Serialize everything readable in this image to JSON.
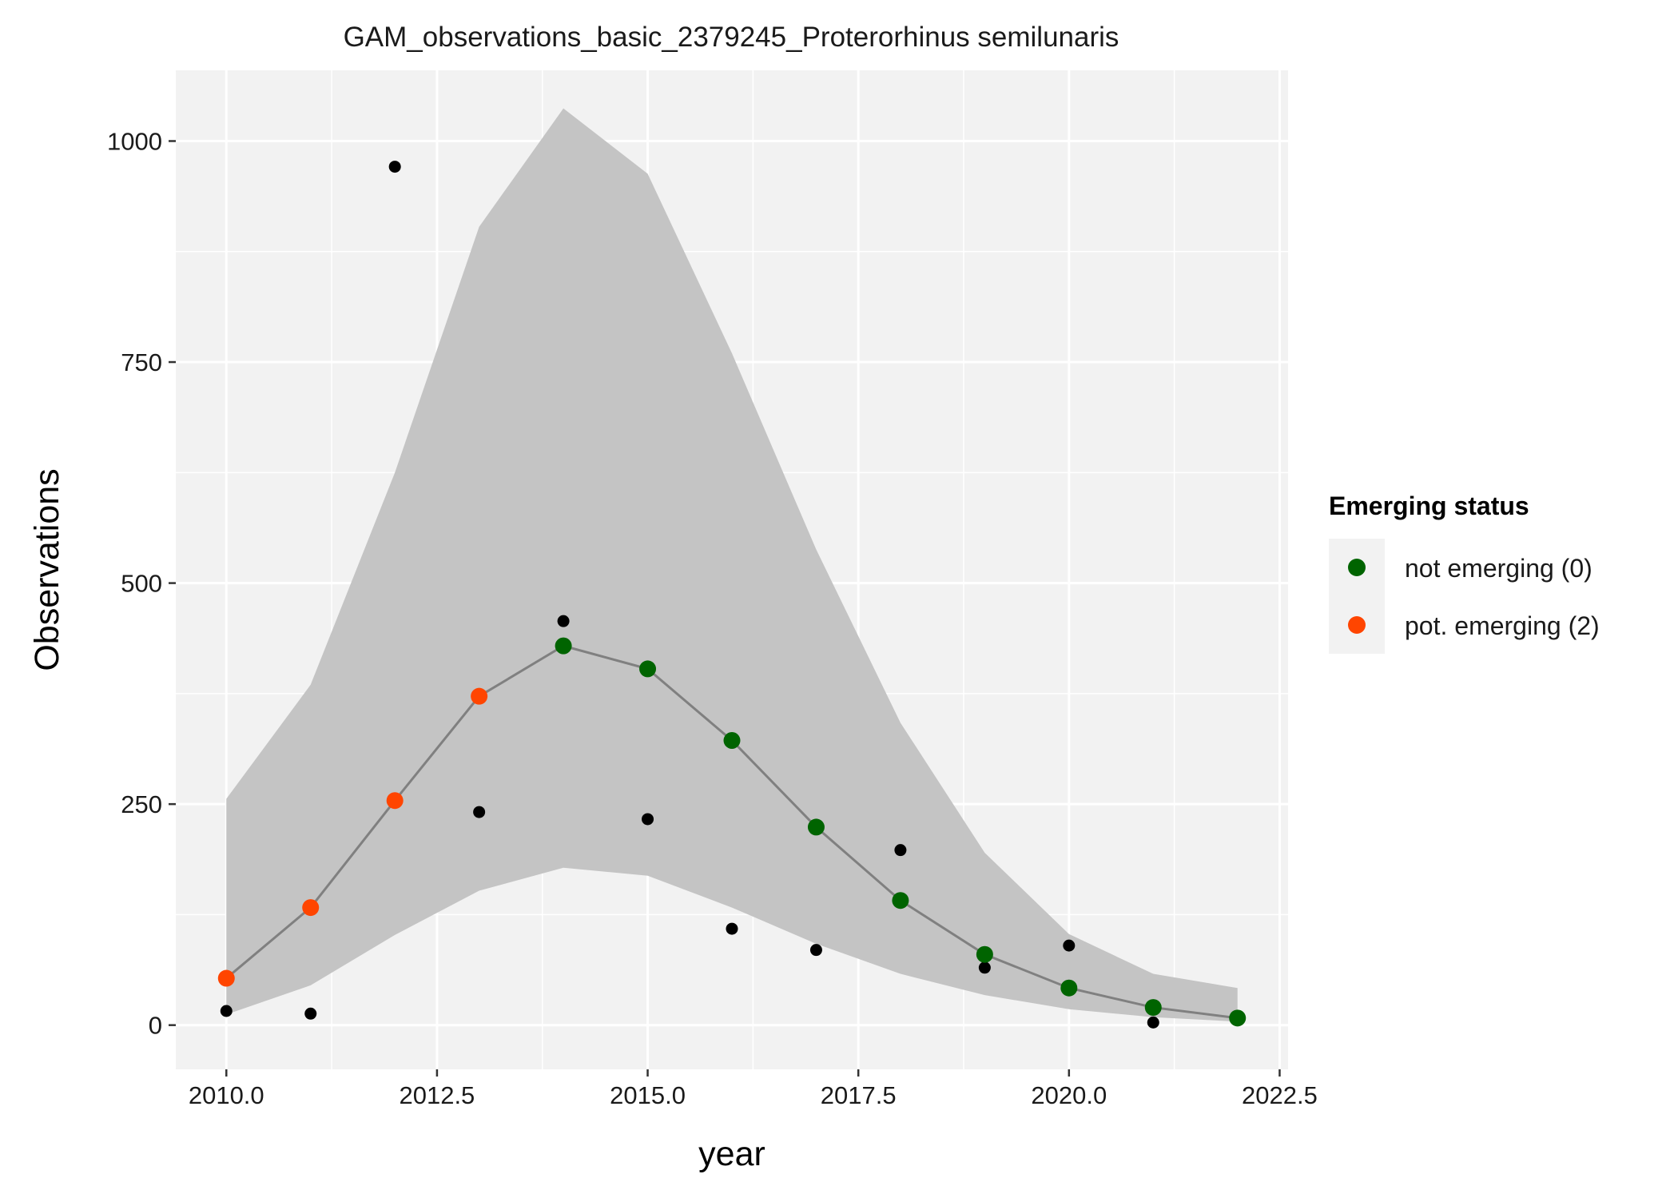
{
  "chart_data": {
    "type": "scatter",
    "title": "GAM_observations_basic_2379245_Proterorhinus semilunaris",
    "xlabel": "year",
    "ylabel": "Observations",
    "xlim": [
      2009.4,
      2022.6
    ],
    "ylim": [
      -50,
      1080
    ],
    "x_ticks": [
      2010,
      2012.5,
      2015,
      2017.5,
      2020,
      2022.5
    ],
    "x_tick_labels": [
      "2010.0",
      "2012.5",
      "2015.0",
      "2017.5",
      "2020.0",
      "2022.5"
    ],
    "y_ticks": [
      0,
      250,
      500,
      750,
      1000
    ],
    "y_tick_labels": [
      "0",
      "250",
      "500",
      "750",
      "1000"
    ],
    "grid": true,
    "legend": {
      "title": "Emerging status",
      "position": "right",
      "entries": [
        {
          "label": "not emerging (0)",
          "color": "#006400"
        },
        {
          "label": "pot. emerging (2)",
          "color": "#ff4500"
        }
      ]
    },
    "colors": {
      "panel_background": "#f2f2f2",
      "grid": "#ffffff",
      "ribbon": "#c4c4c4",
      "fit_line": "#808080",
      "observed": "#000000",
      "not_emerging": "#006400",
      "pot_emerging": "#ff4500"
    },
    "series": [
      {
        "role": "confidence_band",
        "x": [
          2010,
          2011,
          2012,
          2013,
          2014,
          2015,
          2016,
          2017,
          2018,
          2019,
          2020,
          2021,
          2022
        ],
        "lower": [
          12,
          45,
          102,
          152,
          178,
          169,
          133,
          92,
          58,
          34,
          18,
          9,
          4
        ],
        "upper": [
          256,
          385,
          625,
          903,
          1037,
          963,
          760,
          538,
          342,
          195,
          103,
          58,
          42
        ]
      },
      {
        "role": "fitted",
        "x": [
          2010,
          2011,
          2012,
          2013,
          2014,
          2015,
          2016,
          2017,
          2018,
          2019,
          2020,
          2021,
          2022
        ],
        "y": [
          53,
          133,
          254,
          372,
          429,
          403,
          322,
          224,
          141,
          80,
          42,
          20,
          8
        ],
        "status": [
          "pot. emerging (2)",
          "pot. emerging (2)",
          "pot. emerging (2)",
          "pot. emerging (2)",
          "not emerging (0)",
          "not emerging (0)",
          "not emerging (0)",
          "not emerging (0)",
          "not emerging (0)",
          "not emerging (0)",
          "not emerging (0)",
          "not emerging (0)",
          "not emerging (0)"
        ]
      },
      {
        "role": "observed",
        "x": [
          2010,
          2011,
          2012,
          2013,
          2014,
          2015,
          2016,
          2017,
          2018,
          2019,
          2020,
          2021
        ],
        "y": [
          16,
          13,
          971,
          241,
          457,
          233,
          109,
          85,
          198,
          65,
          90,
          3
        ]
      }
    ]
  }
}
